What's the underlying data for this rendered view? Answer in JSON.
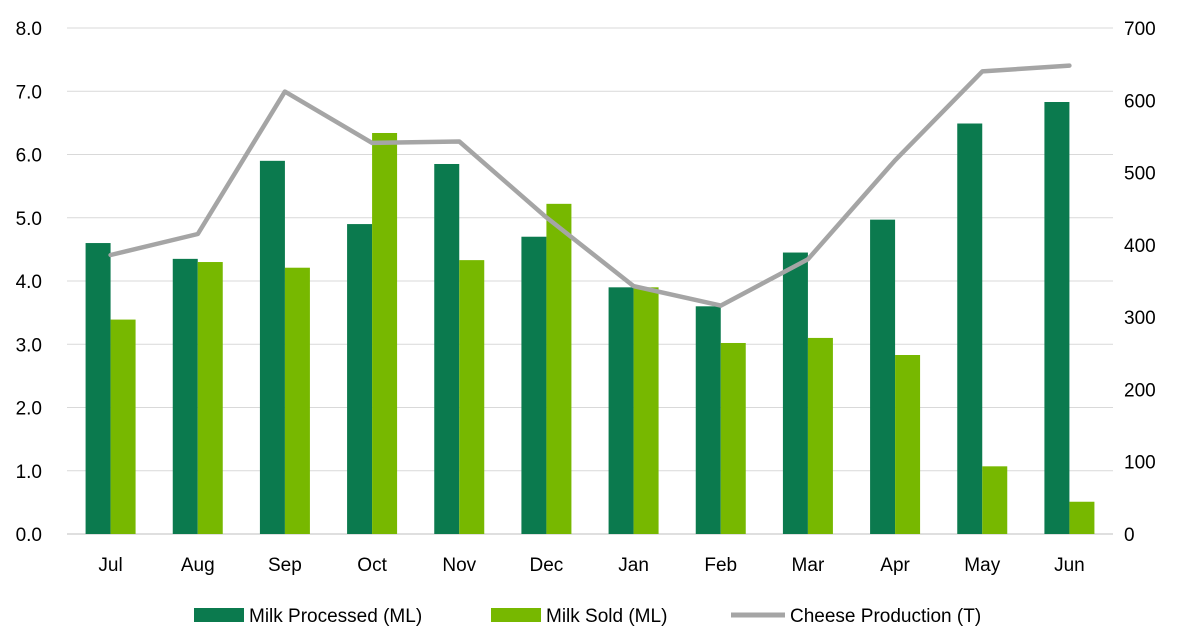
{
  "chart_data": {
    "type": "bar",
    "title": "",
    "xlabel": "",
    "ylabel": "",
    "y2label": "",
    "categories": [
      "Jul",
      "Aug",
      "Sep",
      "Oct",
      "Nov",
      "Dec",
      "Jan",
      "Feb",
      "Mar",
      "Apr",
      "May",
      "Jun"
    ],
    "series": [
      {
        "name": "Milk Processed (ML)",
        "type": "bar",
        "axis": "left",
        "color": "#0b7a4e",
        "values": [
          4.6,
          4.35,
          5.9,
          4.9,
          5.85,
          4.7,
          3.9,
          3.6,
          4.45,
          4.97,
          6.49,
          6.83
        ]
      },
      {
        "name": "Milk Sold (ML)",
        "type": "bar",
        "axis": "left",
        "color": "#77b800",
        "values": [
          3.39,
          4.3,
          4.21,
          6.34,
          4.33,
          5.22,
          3.9,
          3.02,
          3.1,
          2.83,
          1.07,
          0.51
        ]
      },
      {
        "name": "Cheese Production (T)",
        "type": "line",
        "axis": "right",
        "color": "#a5a5a5",
        "values": [
          386,
          415,
          612,
          541,
          543,
          438,
          343,
          316,
          380,
          517,
          640,
          648
        ]
      }
    ],
    "ylim": [
      0,
      8
    ],
    "y_ticks": [
      "0.0",
      "1.0",
      "2.0",
      "3.0",
      "4.0",
      "5.0",
      "6.0",
      "7.0",
      "8.0"
    ],
    "y2lim": [
      0,
      700
    ],
    "y2_ticks": [
      "0",
      "100",
      "200",
      "300",
      "400",
      "500",
      "600",
      "700"
    ],
    "grid": true,
    "legend_position": "bottom"
  }
}
